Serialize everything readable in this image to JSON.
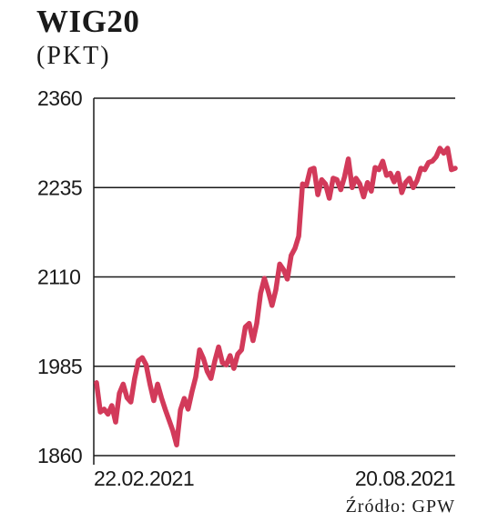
{
  "header": {
    "title": "WIG20",
    "unit": "(PKT)"
  },
  "footer": {
    "source": "Źródło: GPW"
  },
  "colors": {
    "series": "#d23a5a",
    "text": "#1a1a1a",
    "grid": "#1a1a1a"
  },
  "chart_data": {
    "type": "line",
    "title": "WIG20",
    "ylabel": "(PKT)",
    "xlabel": "",
    "ylim": [
      1860,
      2360
    ],
    "yticks": [
      1860,
      1985,
      2110,
      2235,
      2360
    ],
    "ytick_labels": [
      "1860",
      "1985",
      "2110",
      "2235",
      "2360"
    ],
    "x_start_label": "22.02.2021",
    "x_end_label": "20.08.2021",
    "grid": true,
    "series": [
      {
        "values": [
          1962,
          1921,
          1925,
          1918,
          1930,
          1907,
          1947,
          1960,
          1941,
          1935,
          1968,
          1993,
          1997,
          1987,
          1960,
          1937,
          1960,
          1941,
          1925,
          1910,
          1895,
          1875,
          1924,
          1940,
          1925,
          1949,
          1970,
          2008,
          1996,
          1978,
          1968,
          1992,
          2012,
          1990,
          1987,
          2000,
          1982,
          2002,
          2008,
          2040,
          2045,
          2021,
          2045,
          2087,
          2108,
          2090,
          2070,
          2092,
          2128,
          2120,
          2107,
          2140,
          2150,
          2167,
          2240,
          2238,
          2260,
          2262,
          2225,
          2246,
          2240,
          2220,
          2248,
          2246,
          2232,
          2250,
          2275,
          2235,
          2248,
          2240,
          2222,
          2242,
          2230,
          2263,
          2260,
          2272,
          2252,
          2255,
          2243,
          2255,
          2228,
          2242,
          2248,
          2235,
          2245,
          2262,
          2260,
          2270,
          2272,
          2278,
          2290,
          2283,
          2290,
          2260,
          2262
        ]
      }
    ]
  }
}
